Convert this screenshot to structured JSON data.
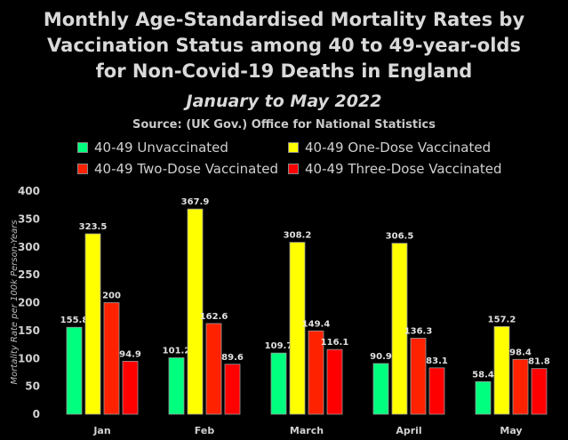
{
  "chart_data": {
    "type": "bar",
    "title": [
      "Monthly Age-Standardised Mortality Rates by",
      "Vaccination Status among 40 to 49-year-olds",
      "for Non-Covid-19 Deaths in England"
    ],
    "subtitle": "January to May 2022",
    "source": "Source: (UK Gov.) Office for National Statistics",
    "ylabel": "Mortality Rate per 100k Person-Years",
    "xlabel": "",
    "ylim": [
      0,
      400
    ],
    "yticks": [
      0,
      50,
      100,
      150,
      200,
      250,
      300,
      350,
      400
    ],
    "grid": false,
    "legend_position": "top",
    "categories": [
      "Jan",
      "Feb",
      "March",
      "April",
      "May"
    ],
    "series": [
      {
        "name": "40-49 Unvaccinated",
        "color": "#00ff7f",
        "values": [
          155.8,
          101.2,
          109.7,
          90.9,
          58.4
        ]
      },
      {
        "name": "40-49 One-Dose Vaccinated",
        "color": "#ffff00",
        "values": [
          323.5,
          367.9,
          308.2,
          306.5,
          157.2
        ]
      },
      {
        "name": "40-49 Two-Dose Vaccinated",
        "color": "#ff2200",
        "values": [
          200,
          162.6,
          149.4,
          136.3,
          98.4
        ]
      },
      {
        "name": "40-49 Three-Dose Vaccinated",
        "color": "#ff0000",
        "values": [
          94.9,
          89.6,
          116.1,
          83.1,
          81.8
        ]
      }
    ]
  }
}
